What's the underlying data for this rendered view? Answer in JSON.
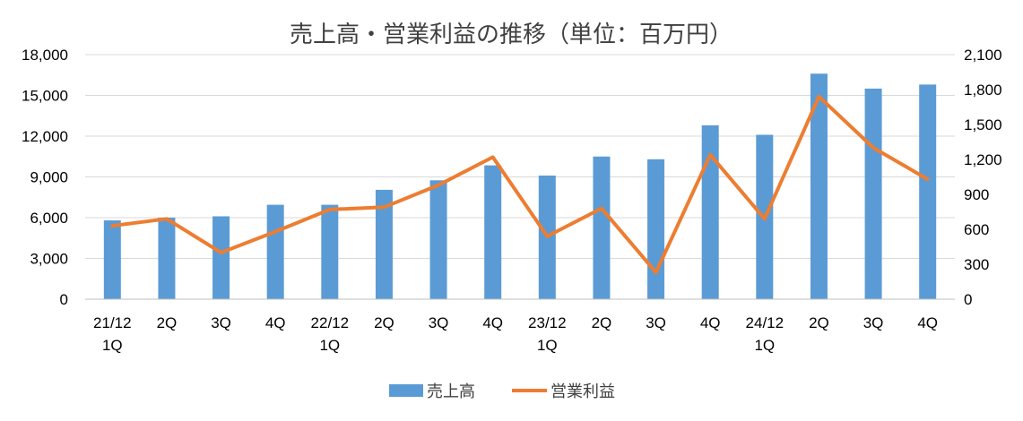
{
  "chart_data": {
    "type": "bar+line",
    "title": "売上高・営業利益の推移（単位：百万円）",
    "categories": [
      [
        "21/12",
        "1Q"
      ],
      [
        "2Q"
      ],
      [
        "3Q"
      ],
      [
        "4Q"
      ],
      [
        "22/12",
        "1Q"
      ],
      [
        "2Q"
      ],
      [
        "3Q"
      ],
      [
        "4Q"
      ],
      [
        "23/12",
        "1Q"
      ],
      [
        "2Q"
      ],
      [
        "3Q"
      ],
      [
        "4Q"
      ],
      [
        "24/12",
        "1Q"
      ],
      [
        "2Q"
      ],
      [
        "3Q"
      ],
      [
        "4Q"
      ]
    ],
    "y_left": {
      "ylim": [
        0,
        18000
      ],
      "ticks": [
        "0",
        "3,000",
        "6,000",
        "9,000",
        "12,000",
        "15,000",
        "18,000"
      ]
    },
    "y_right": {
      "ylim": [
        0,
        2100
      ],
      "ticks": [
        "0",
        "300",
        "600",
        "900",
        "1,200",
        "1,500",
        "1,800",
        "2,100"
      ]
    },
    "series": [
      {
        "name": "売上高",
        "kind": "bar",
        "axis": "left",
        "color": "#5b9bd5",
        "values": [
          5800,
          6000,
          6100,
          6950,
          6950,
          8050,
          8750,
          9850,
          9100,
          10500,
          10300,
          12800,
          12100,
          16600,
          15500,
          15800
        ]
      },
      {
        "name": "営業利益",
        "kind": "line",
        "axis": "right",
        "color": "#ed7d31",
        "values": [
          630,
          690,
          400,
          580,
          770,
          790,
          980,
          1220,
          540,
          780,
          230,
          1240,
          690,
          1740,
          1300,
          1030
        ]
      }
    ],
    "grid": true,
    "legend": "bottom-center"
  }
}
